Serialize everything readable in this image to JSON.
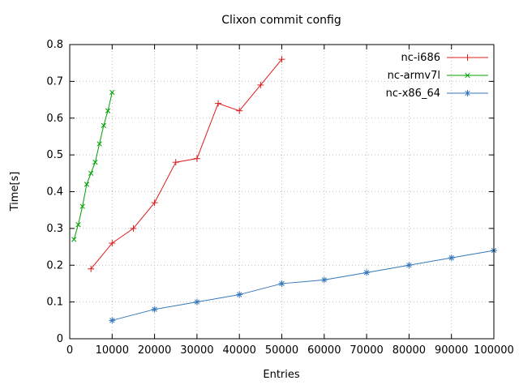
{
  "chart": {
    "title": "Clixon commit config",
    "xlabel": "Entries",
    "ylabel": "Time[s]"
  },
  "chart_data": {
    "type": "line",
    "title": "Clixon commit config",
    "xlabel": "Entries",
    "ylabel": "Time[s]",
    "xlim": [
      0,
      100000
    ],
    "ylim": [
      0,
      0.8
    ],
    "xticks": [
      0,
      10000,
      20000,
      30000,
      40000,
      50000,
      60000,
      70000,
      80000,
      90000,
      100000
    ],
    "yticks": [
      0,
      0.1,
      0.2,
      0.3,
      0.4,
      0.5,
      0.6,
      0.7,
      0.8
    ],
    "grid": true,
    "grid_style": "dotted",
    "grid_color": "#bbbbbb",
    "border_color": "#000000",
    "legend_position": "inside-top-right",
    "series": [
      {
        "name": "nc-i686",
        "color": "#dd1c1c",
        "marker": "plus",
        "x": [
          5000,
          10000,
          15000,
          20000,
          25000,
          30000,
          35000,
          40000,
          45000,
          50000
        ],
        "y": [
          0.19,
          0.26,
          0.3,
          0.37,
          0.48,
          0.49,
          0.64,
          0.62,
          0.69,
          0.76
        ]
      },
      {
        "name": "nc-armv7l",
        "color": "#00a000",
        "marker": "cross",
        "x": [
          1000,
          2000,
          3000,
          4000,
          5000,
          6000,
          7000,
          8000,
          9000,
          10000
        ],
        "y": [
          0.27,
          0.31,
          0.36,
          0.42,
          0.45,
          0.48,
          0.53,
          0.58,
          0.62,
          0.67
        ]
      },
      {
        "name": "nc-x86_64",
        "color": "#3377bb",
        "marker": "asterisk",
        "x": [
          10000,
          20000,
          30000,
          40000,
          50000,
          60000,
          70000,
          80000,
          90000,
          100000
        ],
        "y": [
          0.05,
          0.08,
          0.1,
          0.12,
          0.15,
          0.16,
          0.18,
          0.2,
          0.22,
          0.24
        ]
      }
    ]
  }
}
